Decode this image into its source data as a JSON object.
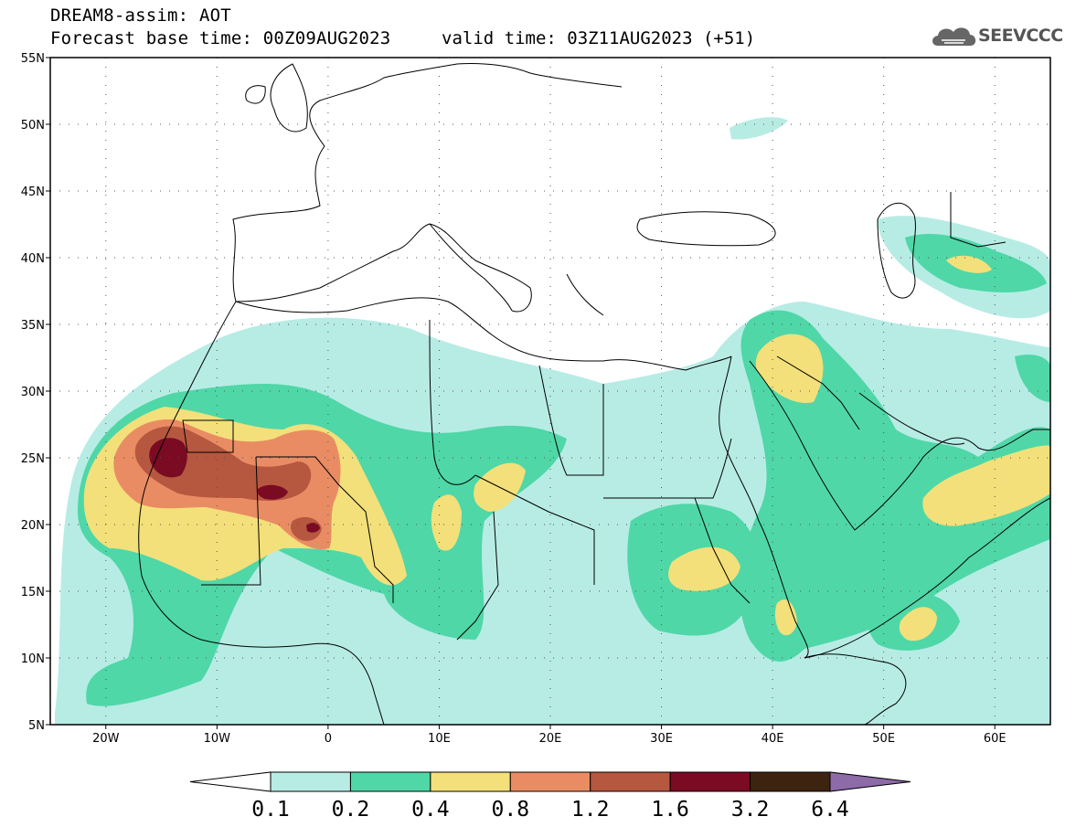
{
  "header": {
    "title": "DREAM8-assim: AOT",
    "base_time": "Forecast base time: 00Z09AUG2023",
    "valid_time": "valid time: 03Z11AUG2023 (+51)"
  },
  "logo": {
    "text": "SEEVCCC",
    "icon": "cloud-icon"
  },
  "map": {
    "lon_range": [
      -25,
      65
    ],
    "lat_range": [
      5,
      55
    ],
    "lat_labels": [
      "55N",
      "50N",
      "45N",
      "40N",
      "35N",
      "30N",
      "25N",
      "20N",
      "15N",
      "10N",
      "5N"
    ],
    "lat_values": [
      55,
      50,
      45,
      40,
      35,
      30,
      25,
      20,
      15,
      10,
      5
    ],
    "lon_labels": [
      "20W",
      "10W",
      "0",
      "10E",
      "20E",
      "30E",
      "40E",
      "50E",
      "60E"
    ],
    "lon_values": [
      -20,
      -10,
      0,
      10,
      20,
      30,
      40,
      50,
      60
    ]
  },
  "colorbar": {
    "labels": [
      "0.1",
      "0.2",
      "0.4",
      "0.8",
      "1.2",
      "1.6",
      "3.2",
      "6.4"
    ],
    "colors": [
      "#b7ece5",
      "#4fd7a7",
      "#f3e07a",
      "#e98c63",
      "#b6573f",
      "#7b0a23",
      "#3d2410",
      "#8d6aa8"
    ],
    "below_color": "#ffffff"
  },
  "colors": {
    "c1": "#b7ece5",
    "c2": "#4fd7a7",
    "c3": "#f3e07a",
    "c4": "#e98c63",
    "c5": "#b6573f",
    "c6": "#7b0a23"
  }
}
